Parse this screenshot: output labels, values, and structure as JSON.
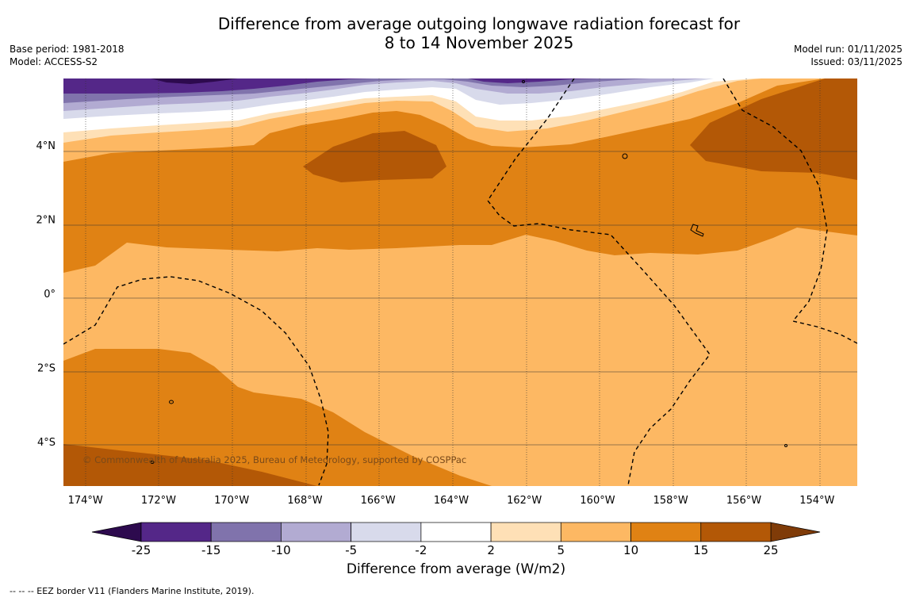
{
  "title": {
    "line1": "Difference from average outgoing longwave radiation forecast for",
    "line2": "8 to 14 November 2025"
  },
  "meta_left": {
    "base_period": "Base period: 1981-2018",
    "model": "Model: ACCESS-S2"
  },
  "meta_right": {
    "model_run": "Model run: 01/11/2025",
    "issued": "Issued: 03/11/2025"
  },
  "map": {
    "copyright": "© Commonwealth of Australia 2025, Bureau of Meteorology, supported by COSPPac",
    "lon_labels": [
      "174°W",
      "172°W",
      "170°W",
      "168°W",
      "166°W",
      "164°W",
      "162°W",
      "160°W",
      "158°W",
      "156°W",
      "154°W"
    ],
    "lat_labels": [
      "4°N",
      "2°N",
      "0°",
      "2°S",
      "4°S"
    ],
    "extent": {
      "lon_west": -174.6,
      "lon_east": -152.9,
      "lat_south": -5.2,
      "lat_north": 5.8
    }
  },
  "colorbar": {
    "title": "Difference from average (W/m2)",
    "tick_labels": [
      "-25",
      "-15",
      "-10",
      "-5",
      "-2",
      "2",
      "5",
      "10",
      "15",
      "25"
    ],
    "colors": {
      "lt_m25": "#2d0a4e",
      "m25_m15": "#542788",
      "m15_m10": "#8073ac",
      "m10_m5": "#b2abd2",
      "m5_m2": "#d8daeb",
      "m2_p2": "#ffffff",
      "p2_p5": "#fee0b6",
      "p5_p10": "#fdb863",
      "p10_p15": "#e08214",
      "p15_p25": "#b35806",
      "gt_p25": "#7f3b08"
    }
  },
  "footer": {
    "eez_note": "--  --  -- EEZ border V11 (Flanders Marine Institute, 2019)."
  }
}
